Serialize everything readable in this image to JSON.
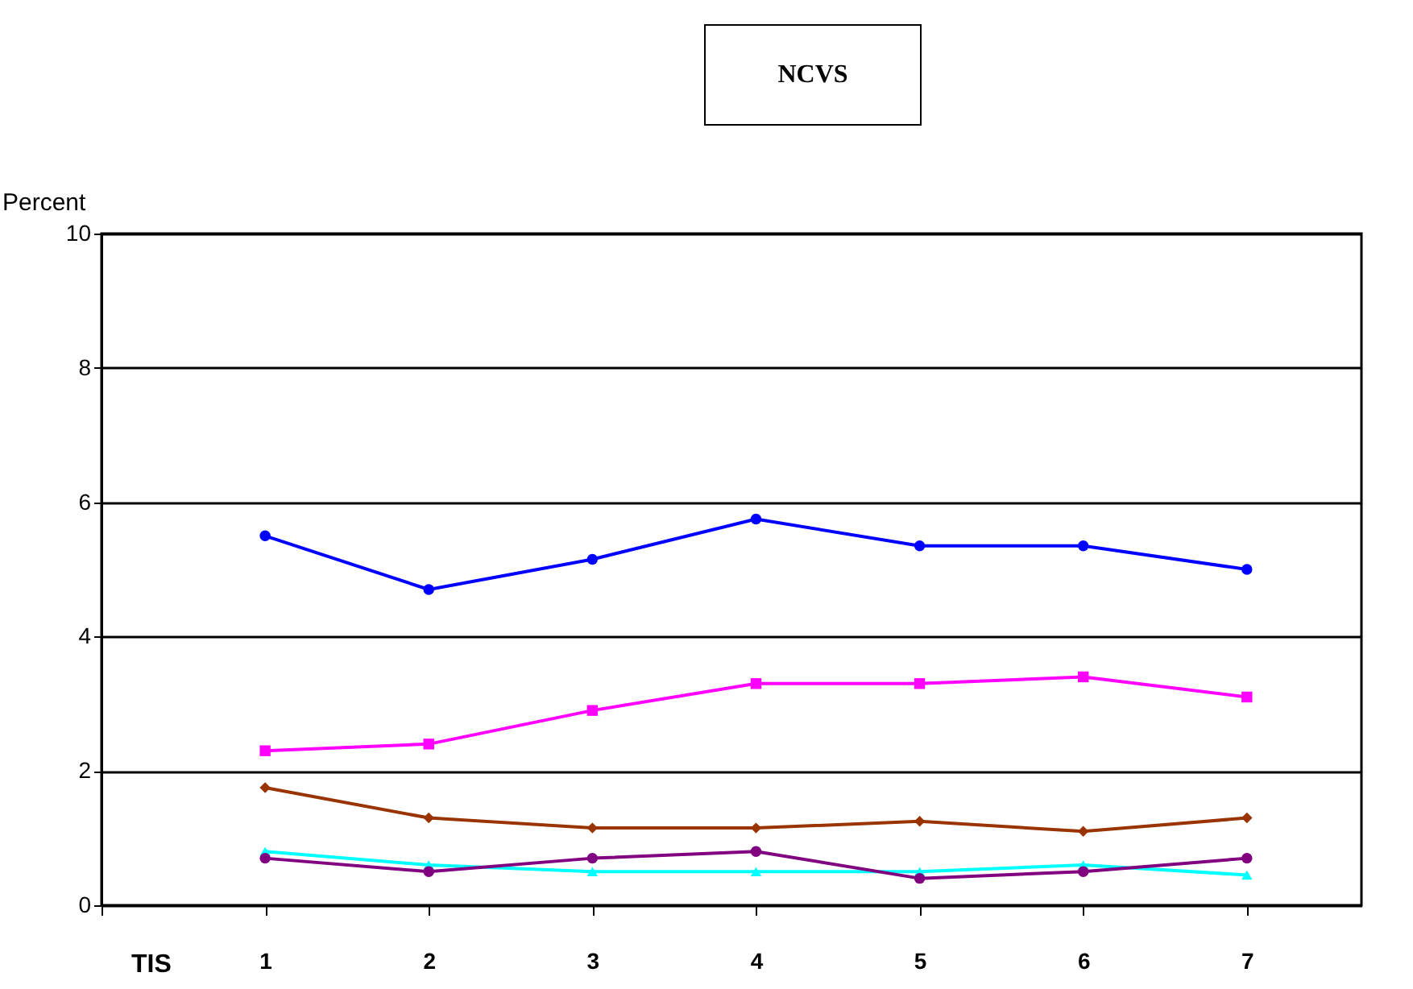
{
  "chart_data": {
    "type": "line",
    "title": "NCVS",
    "xlabel": "TIS",
    "ylabel": "Percent",
    "x": [
      1,
      2,
      3,
      4,
      5,
      6,
      7
    ],
    "xlim": [
      0,
      7.7
    ],
    "xticks": [
      {
        "value": 0,
        "label": null
      },
      1,
      2,
      3,
      4,
      5,
      6,
      7
    ],
    "ylim": [
      0,
      10
    ],
    "yticks": [
      0,
      2,
      4,
      6,
      8,
      10
    ],
    "grid": "y",
    "legend": false,
    "series": [
      {
        "color": "#0000ff",
        "marker": "circle",
        "values": [
          5.5,
          4.7,
          5.15,
          5.75,
          5.35,
          5.35,
          5.0
        ]
      },
      {
        "color": "#ff00ff",
        "marker": "square",
        "values": [
          2.3,
          2.4,
          2.9,
          3.3,
          3.3,
          3.4,
          3.1
        ]
      },
      {
        "color": "#993300",
        "marker": "diamond",
        "values": [
          1.75,
          1.3,
          1.15,
          1.15,
          1.25,
          1.1,
          1.3
        ]
      },
      {
        "color": "#00ffff",
        "marker": "triangle",
        "values": [
          0.8,
          0.6,
          0.5,
          0.5,
          0.5,
          0.6,
          0.45
        ]
      },
      {
        "color": "#800080",
        "marker": "circle",
        "values": [
          0.7,
          0.5,
          0.7,
          0.8,
          0.4,
          0.5,
          0.7
        ]
      }
    ]
  }
}
